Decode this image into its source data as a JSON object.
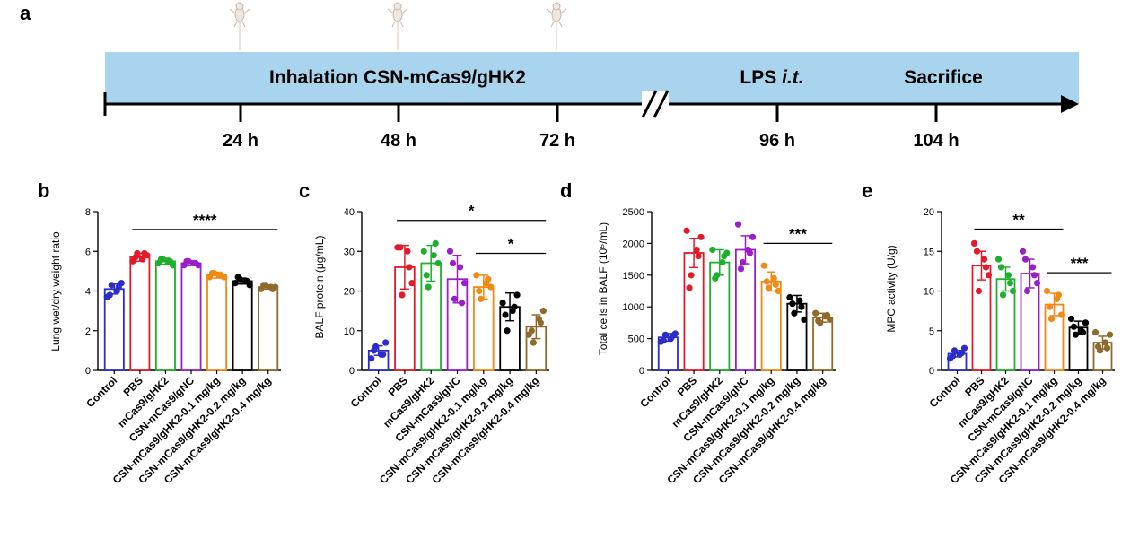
{
  "timeline": {
    "panel_label": "a",
    "band_text": "Inhalation CSN-mCas9/gHK2",
    "lps_text": "LPS",
    "lps_italic": "i.t.",
    "sacrifice_text": "Sacrifice",
    "ticks": [
      "24 h",
      "48 h",
      "72 h",
      "96 h",
      "104 h"
    ],
    "colors": {
      "band": "#a9d4ee",
      "axis": "#000000"
    }
  },
  "groups": [
    "Control",
    "PBS",
    "mCas9/gHK2",
    "CSN-mCas9/gNC",
    "CSN-mCas9/gHK2-0.1 mg/kg",
    "CSN-mCas9/gHK2-0.2 mg/kg",
    "CSN-mCas9/gHK2-0.4 mg/kg"
  ],
  "group_colors": [
    "#2d2cc8",
    "#e11b2a",
    "#1fae2d",
    "#9a1fc7",
    "#f08a14",
    "#000000",
    "#8f6a2c"
  ],
  "chart_data": [
    {
      "panel": "b",
      "type": "bar",
      "ylabel": "Lung wet/dry weight ratio",
      "ylim": [
        0,
        8
      ],
      "yticks": [
        0,
        2,
        4,
        6,
        8
      ],
      "categories": [
        "Control",
        "PBS",
        "mCas9/gHK2",
        "CSN-mCas9/gNC",
        "CSN-mCas9/gHK2-0.1 mg/kg",
        "CSN-mCas9/gHK2-0.2 mg/kg",
        "CSN-mCas9/gHK2-0.4 mg/kg"
      ],
      "values": [
        4.1,
        5.7,
        5.5,
        5.4,
        4.8,
        4.5,
        4.2
      ],
      "errors": [
        0.25,
        0.2,
        0.15,
        0.12,
        0.15,
        0.15,
        0.1
      ],
      "points": [
        [
          3.7,
          4.3,
          4.0,
          4.4,
          3.8,
          4.2
        ],
        [
          5.5,
          5.9,
          5.6,
          5.8,
          5.7,
          5.9
        ],
        [
          5.4,
          5.6,
          5.5,
          5.3,
          5.6,
          5.5
        ],
        [
          5.3,
          5.5,
          5.4,
          5.3,
          5.5,
          5.4
        ],
        [
          4.7,
          4.9,
          4.8,
          4.7,
          4.9,
          4.8
        ],
        [
          4.4,
          4.6,
          4.5,
          4.3,
          4.7,
          4.5
        ],
        [
          4.1,
          4.3,
          4.2,
          4.2,
          4.3,
          4.1
        ]
      ],
      "annotations": [
        {
          "text": "****",
          "from": 1,
          "to": 6,
          "y": 7.1
        }
      ]
    },
    {
      "panel": "c",
      "type": "bar",
      "ylabel": "BALF protein (μg/mL)",
      "ylim": [
        0,
        40
      ],
      "yticks": [
        0,
        10,
        20,
        30,
        40
      ],
      "categories": [
        "Control",
        "PBS",
        "mCas9/gHK2",
        "CSN-mCas9/gNC",
        "CSN-mCas9/gHK2-0.1 mg/kg",
        "CSN-mCas9/gHK2-0.2 mg/kg",
        "CSN-mCas9/gHK2-0.4 mg/kg"
      ],
      "values": [
        5,
        26,
        27,
        23,
        21,
        16,
        11
      ],
      "errors": [
        1.2,
        5.5,
        4.5,
        6,
        3,
        3.5,
        3
      ],
      "points": [
        [
          3,
          6,
          4,
          7,
          5,
          4
        ],
        [
          31,
          19,
          30,
          22,
          31,
          26
        ],
        [
          30,
          21,
          29,
          27,
          24,
          32
        ],
        [
          30,
          18,
          26,
          22,
          27,
          17
        ],
        [
          24,
          18,
          22,
          21,
          20,
          23
        ],
        [
          17,
          10,
          15,
          19,
          14,
          16
        ],
        [
          9,
          7,
          13,
          15,
          10,
          12
        ]
      ],
      "annotations": [
        {
          "text": "*",
          "from": 1,
          "to": 6,
          "y": 37.8
        },
        {
          "text": "*",
          "from": 4,
          "to": 6,
          "y": 29.5
        }
      ]
    },
    {
      "panel": "d",
      "type": "bar",
      "ylabel": "Total cells in BALF (10⁵/mL)",
      "ylim": [
        0,
        2500
      ],
      "yticks": [
        0,
        500,
        1000,
        1500,
        2000,
        2500
      ],
      "categories": [
        "Control",
        "PBS",
        "mCas9/gHK2",
        "CSN-mCas9/gNC",
        "CSN-mCas9/gHK2-0.1 mg/kg",
        "CSN-mCas9/gHK2-0.2 mg/kg",
        "CSN-mCas9/gHK2-0.4 mg/kg"
      ],
      "values": [
        520,
        1850,
        1700,
        1900,
        1400,
        1050,
        830
      ],
      "errors": [
        60,
        230,
        200,
        220,
        150,
        130,
        70
      ],
      "points": [
        [
          450,
          560,
          500,
          580,
          470,
          540
        ],
        [
          2200,
          1500,
          1900,
          2100,
          1300,
          1800
        ],
        [
          1900,
          1500,
          1700,
          1850,
          1450,
          1800
        ],
        [
          2300,
          1700,
          1900,
          2100,
          1600,
          1850
        ],
        [
          1650,
          1300,
          1450,
          1250,
          1400,
          1350
        ],
        [
          1150,
          900,
          1100,
          800,
          1050,
          1000
        ],
        [
          900,
          750,
          850,
          800,
          780,
          870
        ]
      ],
      "annotations": [
        {
          "text": "***",
          "from": 4,
          "to": 6,
          "y": 2000
        }
      ]
    },
    {
      "panel": "e",
      "type": "bar",
      "ylabel": "MPO activity (U/g)",
      "ylim": [
        0,
        20
      ],
      "yticks": [
        0,
        5,
        10,
        15,
        20
      ],
      "categories": [
        "Control",
        "PBS",
        "mCas9/gHK2",
        "CSN-mCas9/gNC",
        "CSN-mCas9/gHK2-0.1 mg/kg",
        "CSN-mCas9/gHK2-0.2 mg/kg",
        "CSN-mCas9/gHK2-0.4 mg/kg"
      ],
      "values": [
        2.1,
        13.2,
        11.5,
        12.2,
        8.3,
        5.4,
        3.5
      ],
      "errors": [
        0.4,
        1.8,
        1.5,
        1.8,
        1.4,
        0.8,
        0.8
      ],
      "points": [
        [
          1.5,
          2.5,
          2,
          2.8,
          1.8,
          2.2
        ],
        [
          16,
          10,
          14,
          12,
          15,
          13
        ],
        [
          14,
          9.5,
          12,
          10,
          13,
          11
        ],
        [
          15,
          10,
          13,
          11,
          14,
          12
        ],
        [
          10,
          6.5,
          9,
          7,
          8,
          9.5
        ],
        [
          6.5,
          4.5,
          5,
          6,
          5.5,
          4.8
        ],
        [
          4.8,
          2.5,
          3.5,
          4.5,
          3,
          2.8
        ]
      ],
      "annotations": [
        {
          "text": "**",
          "from": 1,
          "to": 4,
          "y": 17.8
        },
        {
          "text": "***",
          "from": 4,
          "to": 6,
          "y": 12.3
        }
      ]
    }
  ]
}
